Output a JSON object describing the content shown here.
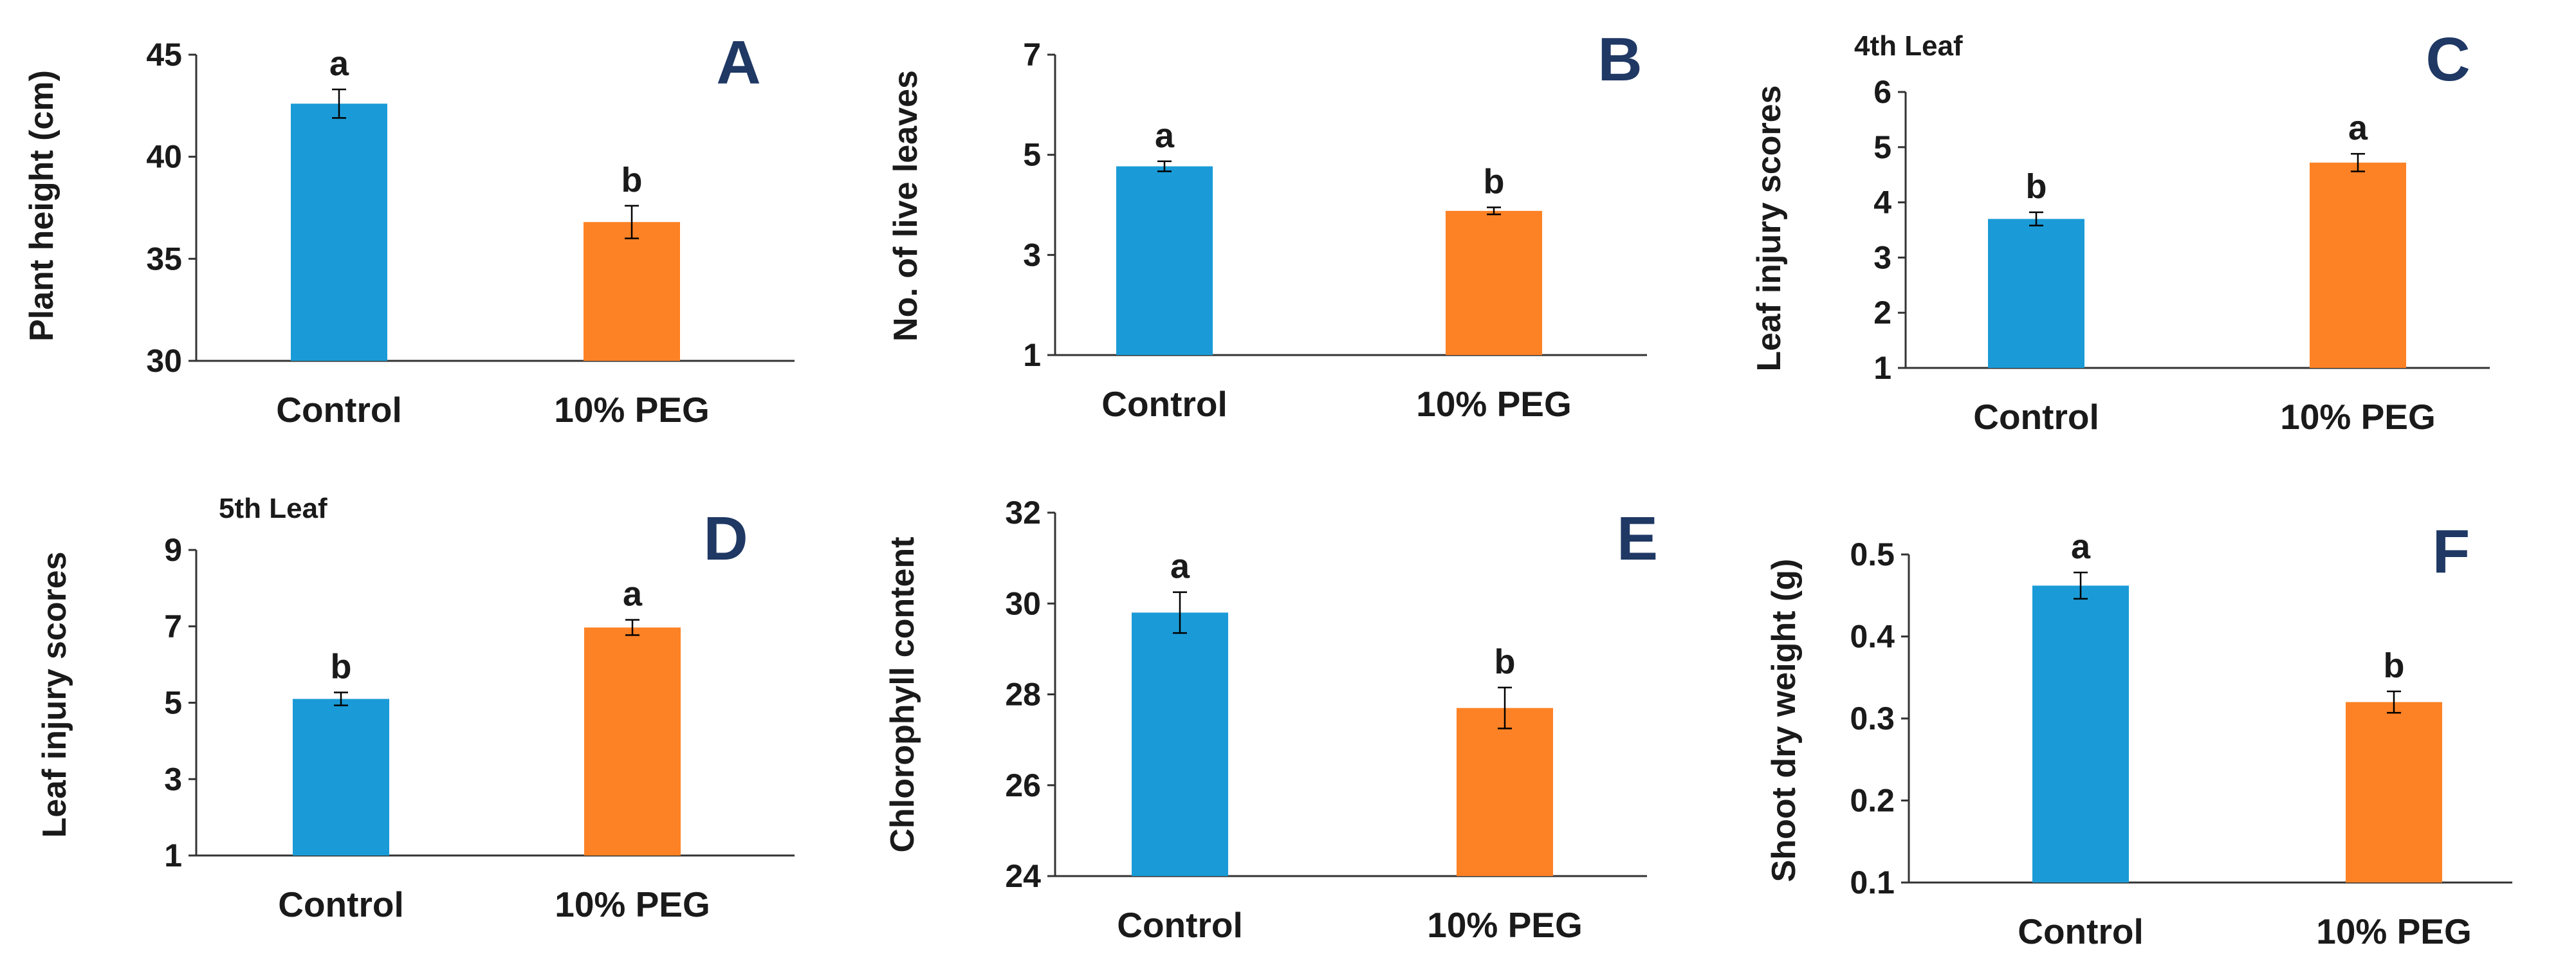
{
  "colors": {
    "control": "#1a9bd7",
    "peg": "#fd8225",
    "panel_letter": "#1f3864"
  },
  "chart_data": [
    {
      "type": "bar",
      "panel": "A",
      "subtitle": "",
      "ylabel": "Plant height (cm)",
      "categories": [
        "Control",
        "10% PEG"
      ],
      "values": [
        42.6,
        36.8
      ],
      "errors": [
        0.7,
        0.8
      ],
      "significance": [
        "a",
        "b"
      ],
      "ylim": [
        30,
        45
      ],
      "yticks": [
        30,
        35,
        40,
        45
      ]
    },
    {
      "type": "bar",
      "panel": "B",
      "subtitle": "",
      "ylabel": "No. of live leaves",
      "categories": [
        "Control",
        "10% PEG"
      ],
      "values": [
        4.77,
        3.88
      ],
      "errors": [
        0.1,
        0.07
      ],
      "significance": [
        "a",
        "b"
      ],
      "ylim": [
        1,
        7
      ],
      "yticks": [
        1,
        3,
        5,
        7
      ]
    },
    {
      "type": "bar",
      "panel": "C",
      "subtitle": "4th Leaf",
      "ylabel": "Leaf injury scores",
      "categories": [
        "Control",
        "10% PEG"
      ],
      "values": [
        3.7,
        4.72
      ],
      "errors": [
        0.12,
        0.16
      ],
      "significance": [
        "b",
        "a"
      ],
      "ylim": [
        1,
        6
      ],
      "yticks": [
        1,
        2,
        3,
        4,
        5,
        6
      ]
    },
    {
      "type": "bar",
      "panel": "D",
      "subtitle": "5th Leaf",
      "ylabel": "Leaf injury scores",
      "categories": [
        "Control",
        "10% PEG"
      ],
      "values": [
        5.1,
        6.97
      ],
      "errors": [
        0.17,
        0.2
      ],
      "significance": [
        "b",
        "a"
      ],
      "ylim": [
        1,
        9
      ],
      "yticks": [
        1,
        3,
        5,
        7,
        9
      ]
    },
    {
      "type": "bar",
      "panel": "E",
      "subtitle": "",
      "ylabel": "Chlorophyll content",
      "categories": [
        "Control",
        "10% PEG"
      ],
      "values": [
        29.8,
        27.7
      ],
      "errors": [
        0.45,
        0.45
      ],
      "significance": [
        "a",
        "b"
      ],
      "ylim": [
        24,
        32
      ],
      "yticks": [
        24,
        26,
        28,
        30,
        32
      ]
    },
    {
      "type": "bar",
      "panel": "F",
      "subtitle": "",
      "ylabel": "Shoot dry weight (g)",
      "categories": [
        "Control",
        "10% PEG"
      ],
      "values": [
        0.462,
        0.32
      ],
      "errors": [
        0.016,
        0.013
      ],
      "significance": [
        "a",
        "b"
      ],
      "ylim": [
        0.1,
        0.5
      ],
      "yticks": [
        "0.1",
        "0.2",
        "0.3",
        "0.4",
        "0.5"
      ]
    }
  ]
}
